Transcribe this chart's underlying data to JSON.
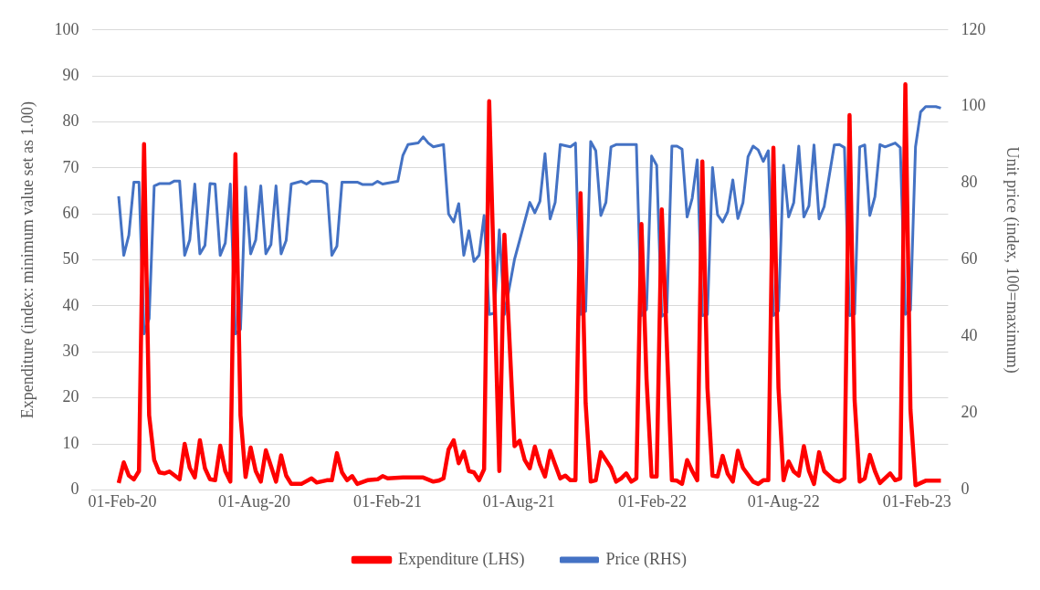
{
  "chart_data": {
    "type": "line",
    "ylabel": "Expenditure (index: minimum value set as 1.00)",
    "y2label": "Unit price (index, 100=maximum)",
    "xlim": [
      "2019-12-21",
      "2023-03-16"
    ],
    "xticks": [
      {
        "value": "2020-02-01",
        "label": "01-Feb-20"
      },
      {
        "value": "2020-08-01",
        "label": "01-Aug-20"
      },
      {
        "value": "2021-02-01",
        "label": "01-Feb-21"
      },
      {
        "value": "2021-08-01",
        "label": "01-Aug-21"
      },
      {
        "value": "2022-02-01",
        "label": "01-Feb-22"
      },
      {
        "value": "2022-08-01",
        "label": "01-Aug-22"
      },
      {
        "value": "2023-02-01",
        "label": "01-Feb-23"
      }
    ],
    "ylim": [
      0,
      100
    ],
    "yticks": [
      0,
      10,
      20,
      30,
      40,
      50,
      60,
      70,
      80,
      90,
      100
    ],
    "y2lim": [
      0,
      120
    ],
    "y2ticks": [
      0,
      20,
      40,
      60,
      80,
      100,
      120
    ],
    "grid": "y",
    "legend": "bottom",
    "series": [
      {
        "name": "Expenditure (LHS)",
        "color": "#ff0000",
        "x": [
          "2020-01-27",
          "2020-02-03",
          "2020-02-10",
          "2020-02-17",
          "2020-02-24",
          "2020-03-02",
          "2020-03-09",
          "2020-03-16",
          "2020-03-23",
          "2020-03-30",
          "2020-04-06",
          "2020-04-20",
          "2020-04-27",
          "2020-05-04",
          "2020-05-11",
          "2020-05-18",
          "2020-05-25",
          "2020-06-01",
          "2020-06-08",
          "2020-06-15",
          "2020-06-22",
          "2020-06-29",
          "2020-07-06",
          "2020-07-13",
          "2020-07-20",
          "2020-07-27",
          "2020-08-03",
          "2020-08-10",
          "2020-08-17",
          "2020-08-31",
          "2020-09-07",
          "2020-09-14",
          "2020-09-21",
          "2020-10-05",
          "2020-10-19",
          "2020-10-26",
          "2020-11-09",
          "2020-11-16",
          "2020-11-23",
          "2020-11-30",
          "2020-12-07",
          "2020-12-14",
          "2020-12-21",
          "2021-01-04",
          "2021-01-18",
          "2021-01-25",
          "2021-02-01",
          "2021-02-22",
          "2021-03-08",
          "2021-03-22",
          "2021-04-05",
          "2021-04-12",
          "2021-04-19",
          "2021-04-26",
          "2021-05-03",
          "2021-05-10",
          "2021-05-17",
          "2021-05-24",
          "2021-05-31",
          "2021-06-07",
          "2021-06-14",
          "2021-06-21",
          "2021-07-05",
          "2021-07-12",
          "2021-07-26",
          "2021-08-02",
          "2021-08-09",
          "2021-08-16",
          "2021-08-23",
          "2021-08-30",
          "2021-09-06",
          "2021-09-13",
          "2021-09-20",
          "2021-09-27",
          "2021-10-04",
          "2021-10-11",
          "2021-10-18",
          "2021-10-25",
          "2021-11-01",
          "2021-11-08",
          "2021-11-15",
          "2021-11-22",
          "2021-12-06",
          "2021-12-13",
          "2021-12-20",
          "2021-12-27",
          "2022-01-03",
          "2022-01-10",
          "2022-01-17",
          "2022-01-24",
          "2022-01-31",
          "2022-02-07",
          "2022-02-14",
          "2022-02-28",
          "2022-03-07",
          "2022-03-14",
          "2022-03-21",
          "2022-03-28",
          "2022-04-04",
          "2022-04-11",
          "2022-04-18",
          "2022-04-25",
          "2022-05-02",
          "2022-05-09",
          "2022-05-16",
          "2022-05-23",
          "2022-05-30",
          "2022-06-06",
          "2022-06-20",
          "2022-06-27",
          "2022-07-04",
          "2022-07-11",
          "2022-07-18",
          "2022-07-25",
          "2022-08-01",
          "2022-08-08",
          "2022-08-15",
          "2022-08-22",
          "2022-08-29",
          "2022-09-05",
          "2022-09-12",
          "2022-09-19",
          "2022-09-26",
          "2022-10-10",
          "2022-10-17",
          "2022-10-24",
          "2022-10-31",
          "2022-11-07",
          "2022-11-14",
          "2022-11-21",
          "2022-11-28",
          "2022-12-05",
          "2022-12-12",
          "2022-12-26",
          "2023-01-02",
          "2023-01-09",
          "2023-01-16",
          "2023-01-23",
          "2023-01-30",
          "2023-02-13",
          "2023-03-06"
        ],
        "values": [
          1.5,
          6.0,
          3.1,
          2.3,
          4.1,
          75.2,
          16.2,
          6.5,
          3.8,
          3.6,
          4.0,
          2.3,
          10.0,
          4.8,
          2.7,
          10.8,
          4.7,
          2.3,
          2.1,
          9.6,
          4.1,
          1.8,
          73.0,
          16.2,
          2.8,
          9.2,
          4.1,
          1.8,
          8.6,
          1.8,
          7.5,
          3.1,
          1.3,
          1.3,
          2.5,
          1.6,
          2.1,
          2.1,
          8.0,
          3.8,
          2.1,
          3.0,
          1.3,
          2.1,
          2.3,
          3.0,
          2.5,
          2.7,
          2.7,
          2.7,
          1.8,
          2.0,
          2.5,
          8.8,
          10.8,
          5.8,
          8.3,
          4.1,
          3.8,
          2.1,
          4.5,
          84.5,
          4.1,
          55.5,
          9.5,
          10.7,
          6.5,
          4.7,
          9.4,
          5.5,
          2.9,
          8.5,
          5.5,
          2.5,
          3.1,
          2.1,
          2.1,
          64.5,
          18.9,
          1.8,
          2.1,
          8.2,
          4.8,
          1.8,
          2.5,
          3.6,
          1.8,
          2.5,
          57.8,
          24.2,
          2.9,
          2.9,
          61.0,
          2.1,
          2.0,
          1.3,
          6.5,
          4.1,
          2.1,
          71.4,
          22.2,
          3.1,
          2.9,
          7.4,
          3.5,
          1.8,
          8.5,
          4.8,
          1.8,
          1.3,
          2.1,
          2.1,
          74.4,
          22.2,
          2.1,
          6.2,
          4.0,
          3.1,
          9.5,
          4.1,
          1.3,
          8.2,
          4.1,
          2.1,
          1.8,
          2.5,
          81.5,
          19.5,
          1.8,
          2.5,
          7.6,
          4.1,
          1.5,
          3.6,
          2.1,
          2.5,
          88.2,
          17.5,
          1.0,
          2.0,
          2.0
        ]
      },
      {
        "name": "Price (RHS)",
        "color": "#4472c4",
        "axis": "y2",
        "x": [
          "2020-01-27",
          "2020-02-03",
          "2020-02-10",
          "2020-02-17",
          "2020-02-24",
          "2020-03-02",
          "2020-03-09",
          "2020-03-16",
          "2020-03-23",
          "2020-04-06",
          "2020-04-13",
          "2020-04-20",
          "2020-04-27",
          "2020-05-04",
          "2020-05-11",
          "2020-05-18",
          "2020-05-25",
          "2020-06-01",
          "2020-06-08",
          "2020-06-15",
          "2020-06-22",
          "2020-06-29",
          "2020-07-06",
          "2020-07-13",
          "2020-07-20",
          "2020-07-27",
          "2020-08-03",
          "2020-08-10",
          "2020-08-17",
          "2020-08-24",
          "2020-08-31",
          "2020-09-07",
          "2020-09-14",
          "2020-09-21",
          "2020-10-05",
          "2020-10-12",
          "2020-10-19",
          "2020-11-02",
          "2020-11-09",
          "2020-11-16",
          "2020-11-23",
          "2020-11-30",
          "2020-12-21",
          "2020-12-28",
          "2021-01-11",
          "2021-01-18",
          "2021-01-25",
          "2021-02-15",
          "2021-02-22",
          "2021-03-01",
          "2021-03-15",
          "2021-03-22",
          "2021-03-29",
          "2021-04-05",
          "2021-04-19",
          "2021-04-26",
          "2021-05-03",
          "2021-05-10",
          "2021-05-17",
          "2021-05-24",
          "2021-05-31",
          "2021-06-07",
          "2021-06-14",
          "2021-06-21",
          "2021-06-28",
          "2021-07-05",
          "2021-07-12",
          "2021-07-26",
          "2021-08-02",
          "2021-08-16",
          "2021-08-23",
          "2021-08-30",
          "2021-09-06",
          "2021-09-13",
          "2021-09-20",
          "2021-09-27",
          "2021-10-11",
          "2021-10-18",
          "2021-10-25",
          "2021-11-01",
          "2021-11-08",
          "2021-11-15",
          "2021-11-22",
          "2021-11-29",
          "2021-12-06",
          "2021-12-13",
          "2022-01-10",
          "2022-01-17",
          "2022-01-24",
          "2022-01-31",
          "2022-02-07",
          "2022-02-14",
          "2022-02-21",
          "2022-02-28",
          "2022-03-07",
          "2022-03-14",
          "2022-03-21",
          "2022-03-28",
          "2022-04-04",
          "2022-04-11",
          "2022-04-18",
          "2022-04-25",
          "2022-05-02",
          "2022-05-09",
          "2022-05-16",
          "2022-05-23",
          "2022-05-30",
          "2022-06-06",
          "2022-06-13",
          "2022-06-20",
          "2022-06-27",
          "2022-07-04",
          "2022-07-11",
          "2022-07-18",
          "2022-07-25",
          "2022-08-01",
          "2022-08-08",
          "2022-08-15",
          "2022-08-22",
          "2022-08-29",
          "2022-09-05",
          "2022-09-12",
          "2022-09-19",
          "2022-09-26",
          "2022-10-10",
          "2022-10-17",
          "2022-10-24",
          "2022-10-31",
          "2022-11-07",
          "2022-11-14",
          "2022-11-21",
          "2022-11-28",
          "2022-12-05",
          "2022-12-12",
          "2022-12-19",
          "2023-01-02",
          "2023-01-09",
          "2023-01-16",
          "2023-01-23",
          "2023-01-30",
          "2023-02-06",
          "2023-02-13",
          "2023-02-27",
          "2023-03-06"
        ],
        "values": [
          76.6,
          61.2,
          66.4,
          80.3,
          80.3,
          40.7,
          44.7,
          79.3,
          79.9,
          79.9,
          80.6,
          80.6,
          61.2,
          65.2,
          79.8,
          61.6,
          63.8,
          79.9,
          79.8,
          61.2,
          64.4,
          79.8,
          40.7,
          41.9,
          79.0,
          61.6,
          65.2,
          79.3,
          61.6,
          64.0,
          79.3,
          61.6,
          65.1,
          79.8,
          80.5,
          79.8,
          80.6,
          80.5,
          79.8,
          61.2,
          63.6,
          80.3,
          80.3,
          79.7,
          79.7,
          80.5,
          79.8,
          80.5,
          87.3,
          90.1,
          90.5,
          92.1,
          90.5,
          89.5,
          90.1,
          72.0,
          69.9,
          74.7,
          61.2,
          67.6,
          59.6,
          61.2,
          71.6,
          45.8,
          46.1,
          67.8,
          45.8,
          60.2,
          65.1,
          75.0,
          72.3,
          75.3,
          87.7,
          70.7,
          75.0,
          90.1,
          89.5,
          90.5,
          45.8,
          46.6,
          90.9,
          88.5,
          71.6,
          75.0,
          89.5,
          90.1,
          90.1,
          45.5,
          47.1,
          87.1,
          84.7,
          45.3,
          46.3,
          89.7,
          89.7,
          88.9,
          71.2,
          76.1,
          86.1,
          45.5,
          45.8,
          84.1,
          71.8,
          69.9,
          72.6,
          80.9,
          70.8,
          74.9,
          86.9,
          89.7,
          88.7,
          85.7,
          88.5,
          45.5,
          46.7,
          84.7,
          71.2,
          74.9,
          89.7,
          71.2,
          74.1,
          90.0,
          70.7,
          73.9,
          90.0,
          90.1,
          89.3,
          45.5,
          45.9,
          89.5,
          90.0,
          71.6,
          76.5,
          90.1,
          89.5,
          90.5,
          89.3,
          45.8,
          46.9,
          89.5,
          98.6,
          100.0,
          100.0,
          99.6
        ]
      }
    ]
  }
}
